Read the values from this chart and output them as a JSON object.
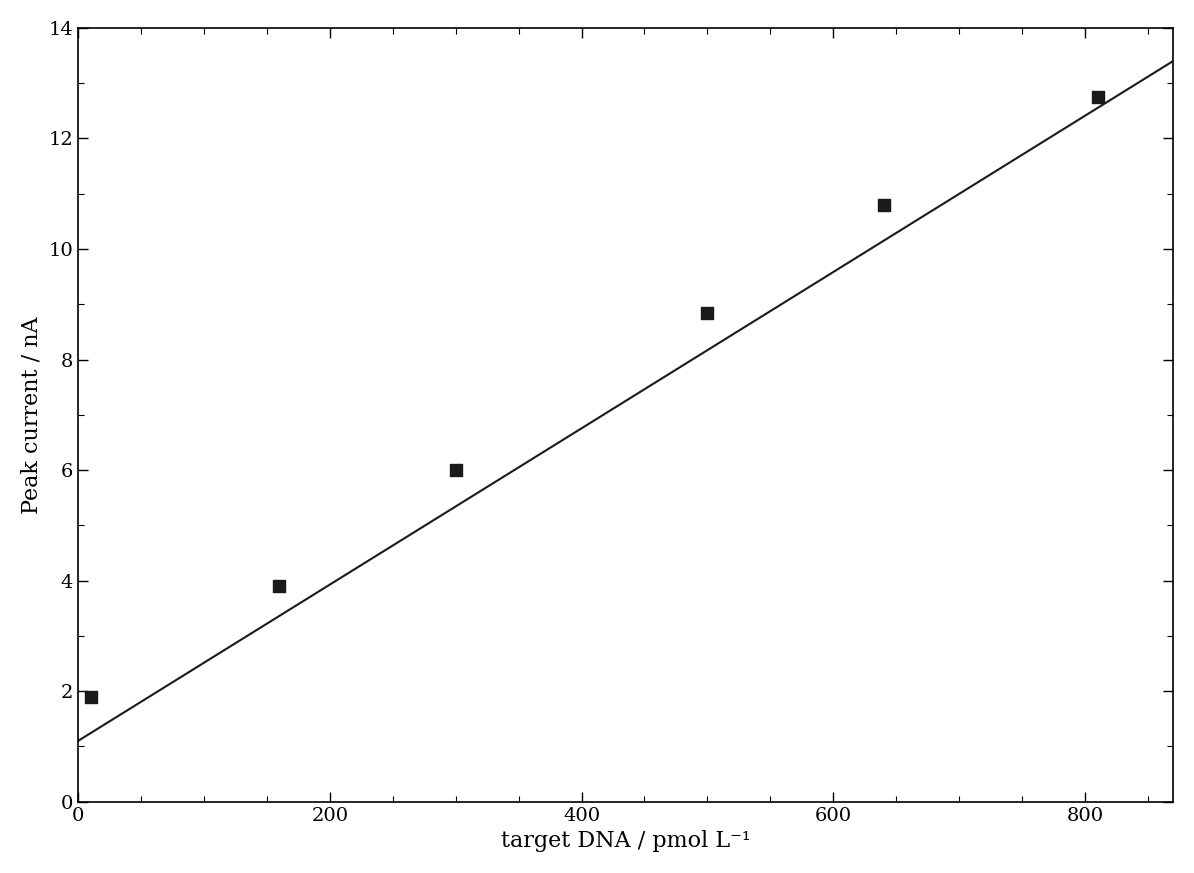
{
  "scatter_x": [
    10,
    160,
    300,
    500,
    640,
    810
  ],
  "scatter_y": [
    1.9,
    3.9,
    6.0,
    8.85,
    10.8,
    12.75
  ],
  "line_x_start": 0,
  "line_x_end": 870,
  "line_y_start": 1.1,
  "line_y_end": 13.4,
  "xlabel": "target DNA / pmol L⁻¹",
  "ylabel": "Peak current / nA",
  "xlim": [
    0,
    870
  ],
  "ylim": [
    0,
    14
  ],
  "xticks": [
    0,
    200,
    400,
    600,
    800
  ],
  "yticks": [
    0,
    2,
    4,
    6,
    8,
    10,
    12,
    14
  ],
  "marker_color": "#1a1a1a",
  "line_color": "#1a1a1a",
  "background_color": "#ffffff",
  "marker_size": 8,
  "line_width": 1.5,
  "xlabel_fontsize": 16,
  "ylabel_fontsize": 16,
  "tick_fontsize": 14
}
